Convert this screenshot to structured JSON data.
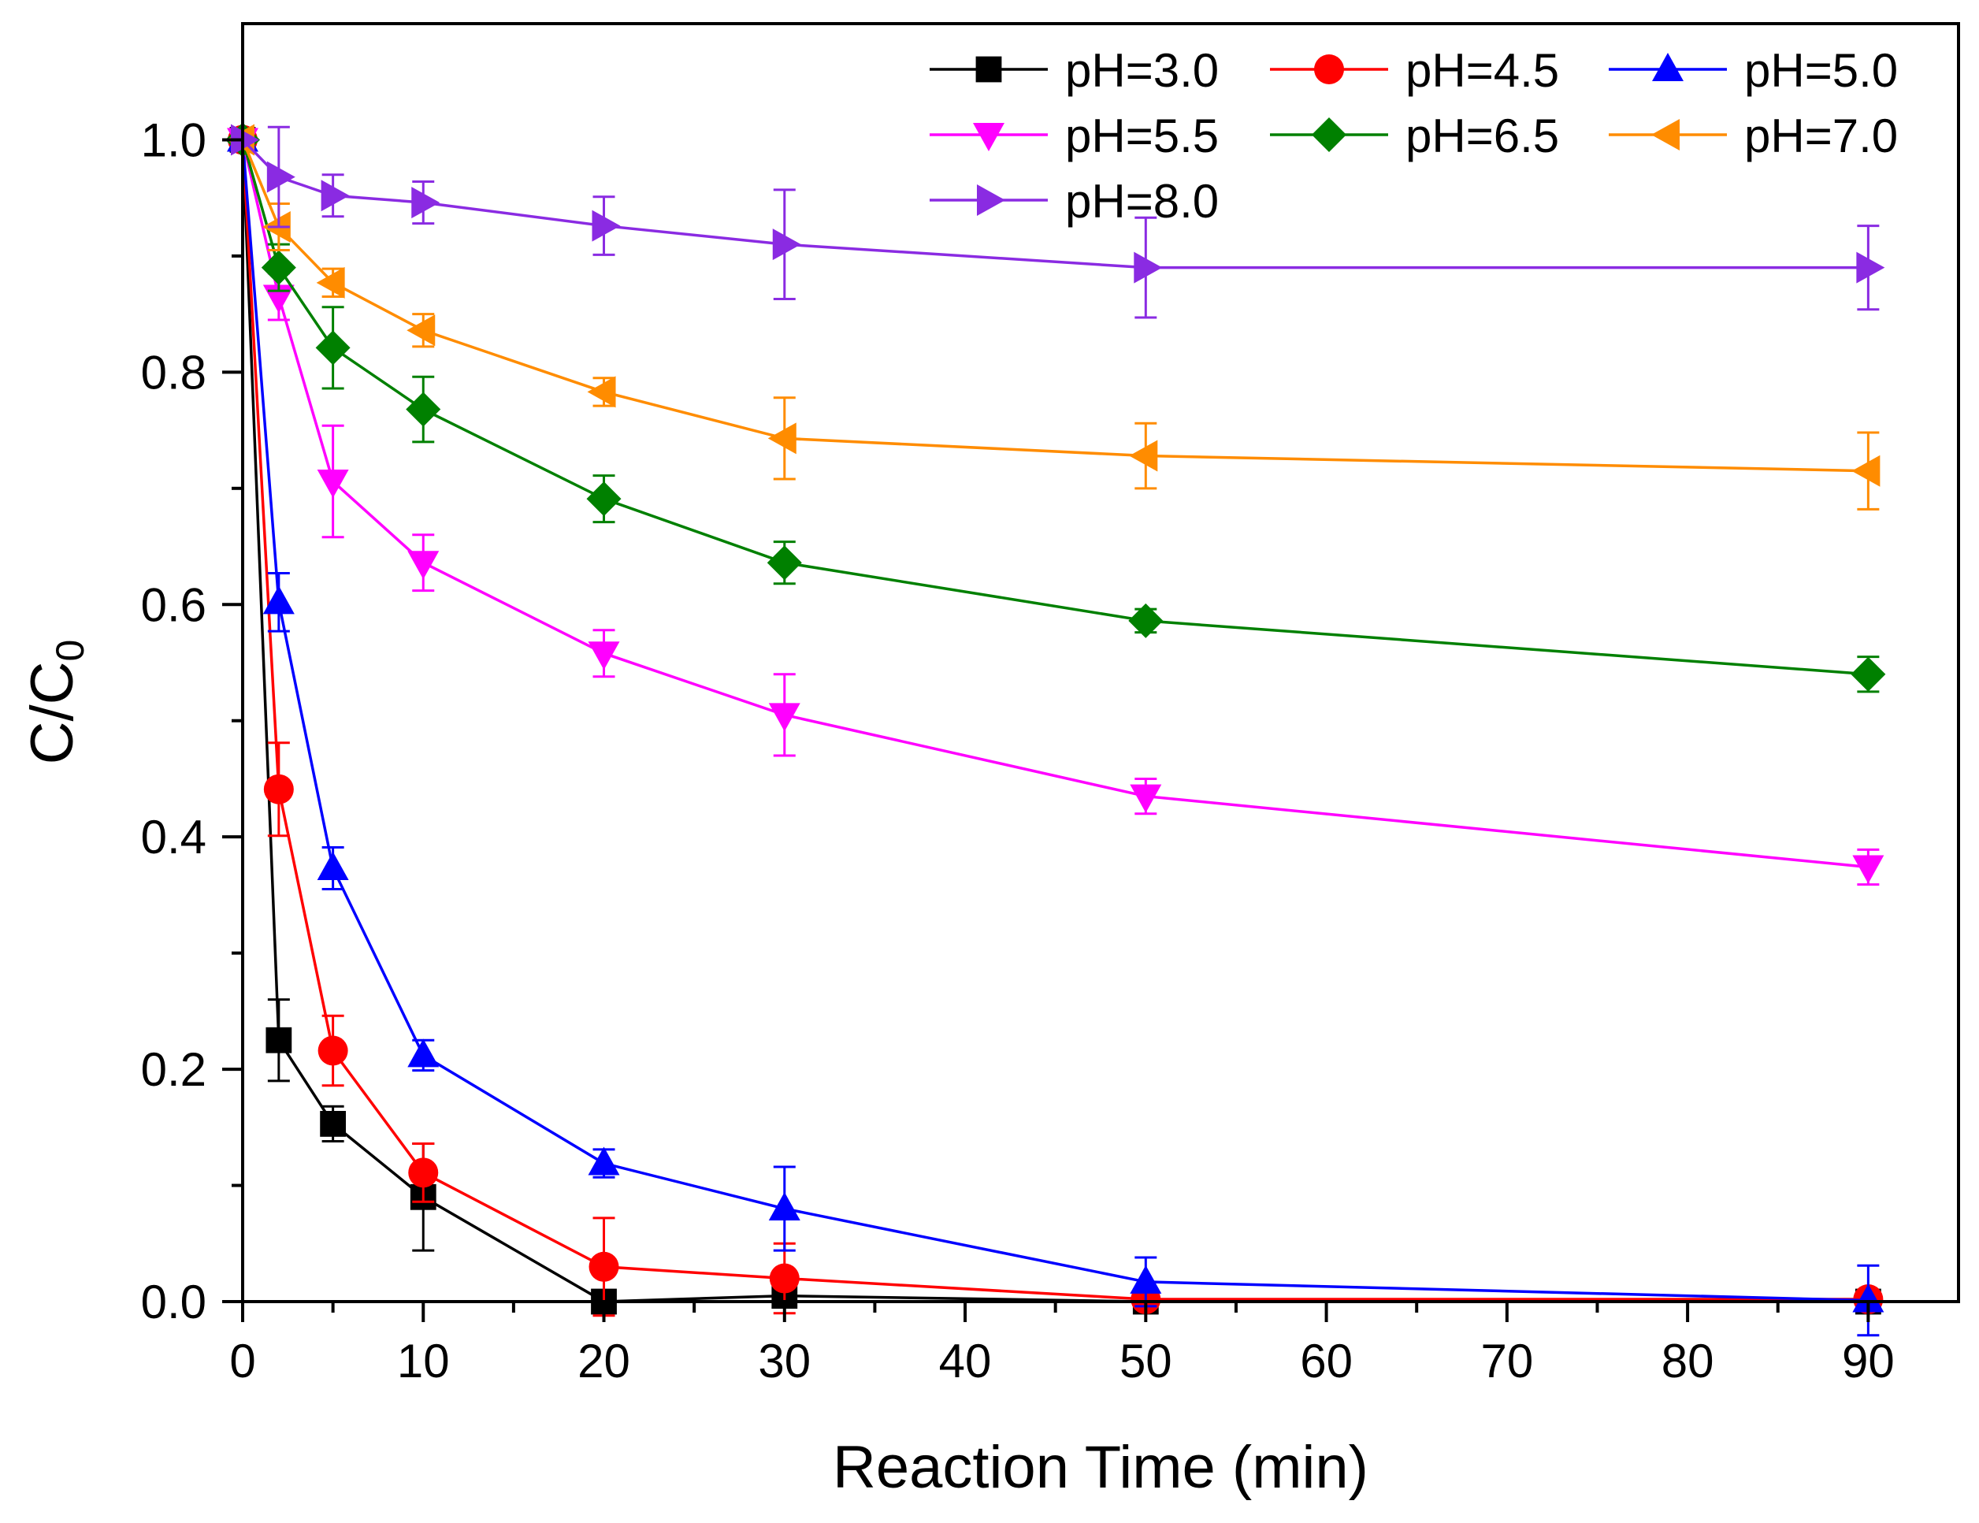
{
  "chart_data": {
    "type": "line",
    "title": "",
    "xlabel": "Reaction Time (min)",
    "ylabel_main": "C/C",
    "ylabel_sub": "0",
    "xlim": [
      0,
      95
    ],
    "ylim": [
      0,
      1.1
    ],
    "xticks": [
      0,
      10,
      20,
      30,
      40,
      50,
      60,
      70,
      80,
      90
    ],
    "xtick_labels": [
      "0",
      "10",
      "20",
      "30",
      "40",
      "50",
      "60",
      "70",
      "80",
      "90"
    ],
    "yticks": [
      0,
      0.2,
      0.4,
      0.6,
      0.8,
      1.0
    ],
    "ytick_labels": [
      "0.0",
      "0.2",
      "0.4",
      "0.6",
      "0.8",
      "1.0"
    ],
    "grid": false,
    "legend_position": "top-right",
    "x": [
      0,
      2,
      5,
      10,
      20,
      30,
      50,
      90
    ],
    "series": [
      {
        "name": "pH=3.0",
        "color": "#000000",
        "marker": "square",
        "values": [
          1.0,
          0.225,
          0.153,
          0.09,
          0.0,
          0.005,
          0.0,
          0.0
        ],
        "errors": [
          0,
          0.035,
          0.015,
          0.046,
          0.0,
          0.0,
          0.0,
          0.0
        ]
      },
      {
        "name": "pH=4.5",
        "color": "#ff0000",
        "marker": "circle",
        "values": [
          1.0,
          0.441,
          0.216,
          0.111,
          0.03,
          0.02,
          0.002,
          0.002
        ],
        "errors": [
          0,
          0.04,
          0.03,
          0.025,
          0.042,
          0.03,
          0.0,
          0.0
        ]
      },
      {
        "name": "pH=5.0",
        "color": "#0000ff",
        "marker": "triangle-up",
        "values": [
          1.0,
          0.602,
          0.373,
          0.212,
          0.119,
          0.08,
          0.017,
          0.001
        ],
        "errors": [
          0,
          0.025,
          0.018,
          0.013,
          0.012,
          0.036,
          0.021,
          0.03
        ]
      },
      {
        "name": "pH=5.5",
        "color": "#ff00ff",
        "marker": "triangle-down",
        "values": [
          1.0,
          0.865,
          0.706,
          0.636,
          0.558,
          0.505,
          0.435,
          0.374
        ],
        "errors": [
          0,
          0.02,
          0.048,
          0.024,
          0.02,
          0.035,
          0.015,
          0.015
        ]
      },
      {
        "name": "pH=6.5",
        "color": "#008000",
        "marker": "diamond",
        "values": [
          1.0,
          0.89,
          0.821,
          0.768,
          0.691,
          0.636,
          0.586,
          0.54
        ],
        "errors": [
          0,
          0.02,
          0.035,
          0.028,
          0.02,
          0.018,
          0.01,
          0.015
        ]
      },
      {
        "name": "pH=7.0",
        "color": "#ff8c00",
        "marker": "triangle-left",
        "values": [
          1.0,
          0.925,
          0.877,
          0.836,
          0.783,
          0.743,
          0.728,
          0.715
        ],
        "errors": [
          0,
          0.02,
          0.012,
          0.014,
          0.012,
          0.035,
          0.028,
          0.033
        ]
      },
      {
        "name": "pH=8.0",
        "color": "#8a2be2",
        "marker": "triangle-right",
        "values": [
          1.0,
          0.968,
          0.952,
          0.946,
          0.926,
          0.91,
          0.89,
          0.89
        ],
        "errors": [
          0,
          0.043,
          0.018,
          0.018,
          0.025,
          0.047,
          0.043,
          0.036
        ]
      }
    ]
  }
}
